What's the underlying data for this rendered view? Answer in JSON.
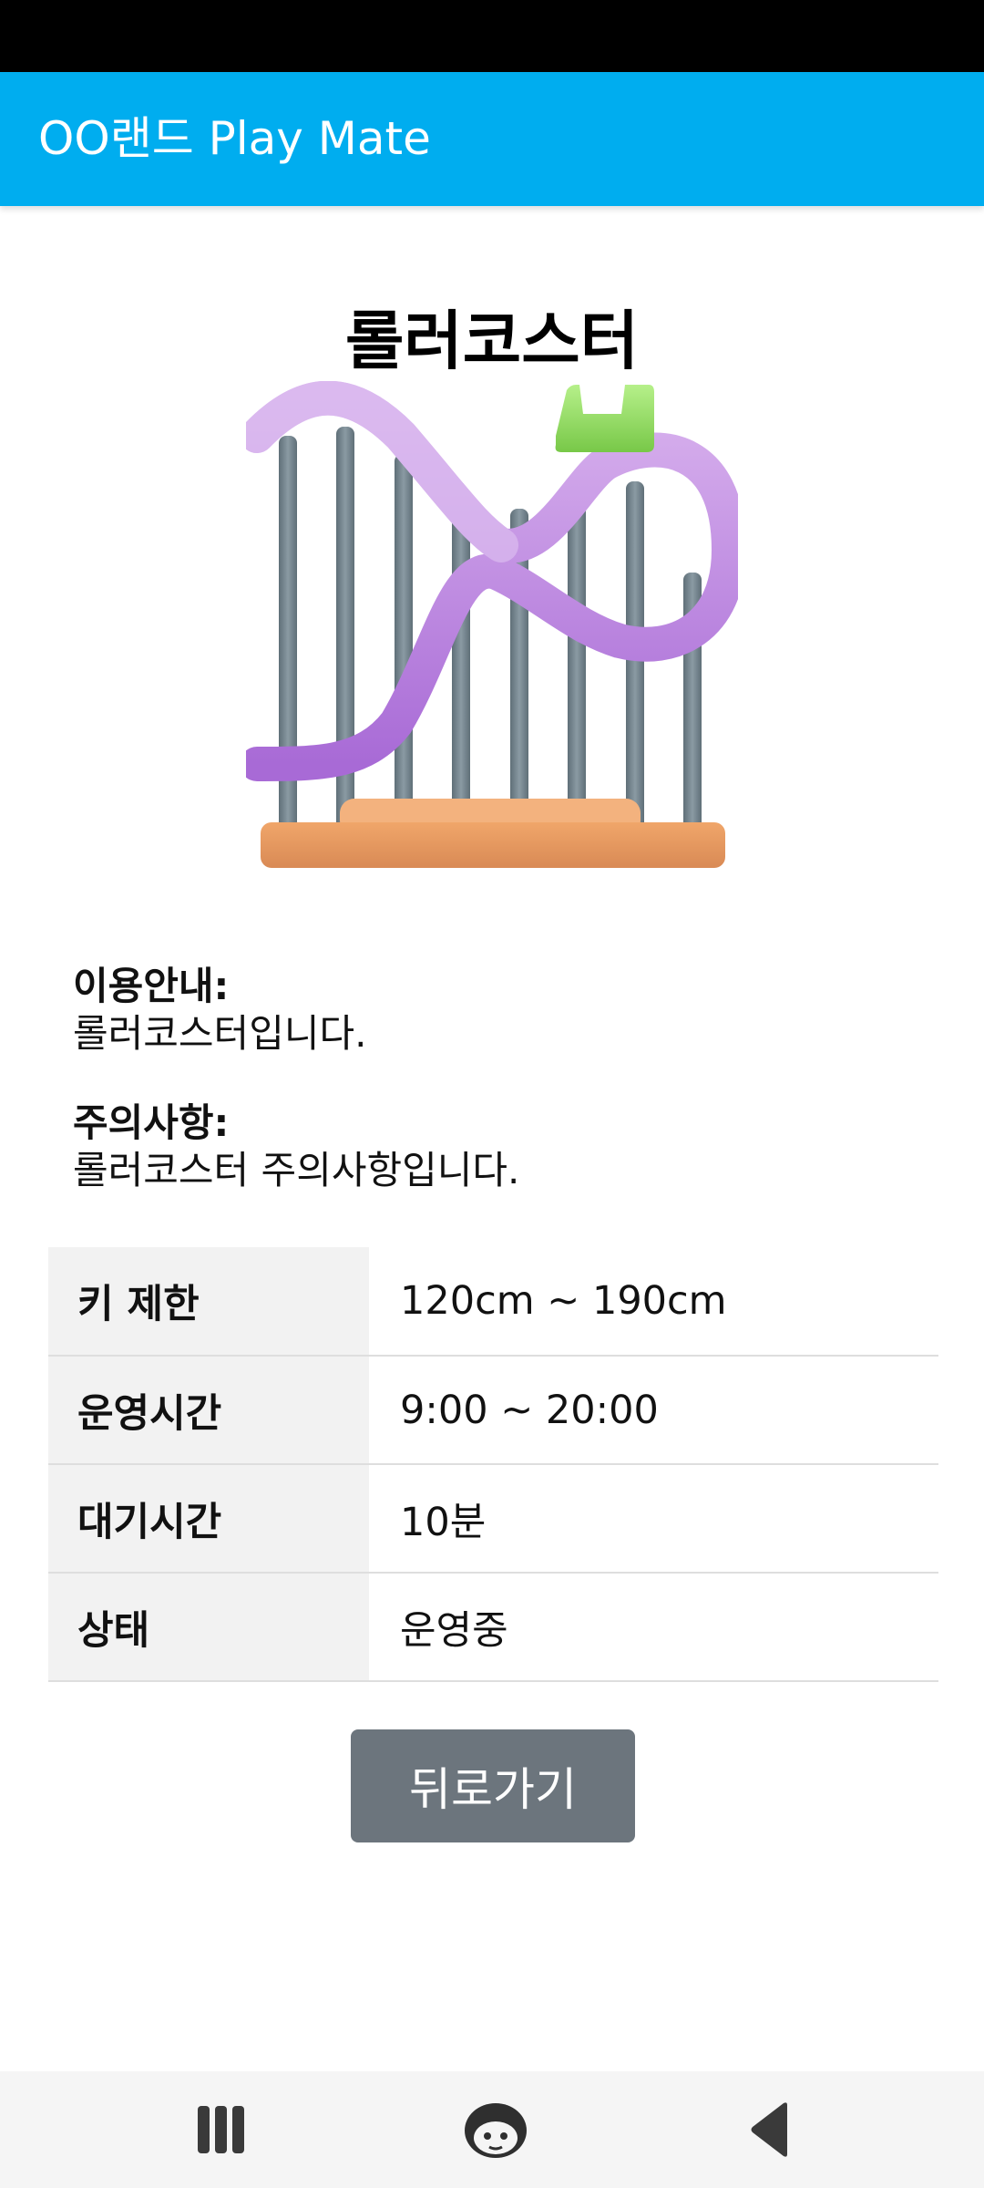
{
  "app": {
    "title": "OO랜드 Play Mate"
  },
  "ride": {
    "name": "롤러코스터",
    "image_icon": "roller-coaster-icon",
    "usage_label": "이용안내:",
    "usage_text": "롤러코스터입니다.",
    "caution_label": "주의사항:",
    "caution_text": "롤러코스터 주의사항입니다."
  },
  "details": [
    {
      "key": "키 제한",
      "value": "120cm ~ 190cm"
    },
    {
      "key": "운영시간",
      "value": "9:00 ~ 20:00"
    },
    {
      "key": "대기시간",
      "value": "10분"
    },
    {
      "key": "상태",
      "value": "운영중"
    }
  ],
  "actions": {
    "back_label": "뒤로가기"
  },
  "navigation": {
    "buttons": [
      "recent-apps-icon",
      "home-assistant-icon",
      "back-icon"
    ]
  },
  "colors": {
    "app_bar": "#00adef",
    "back_button": "#6c757d",
    "table_key_bg": "#f2f2f2"
  }
}
